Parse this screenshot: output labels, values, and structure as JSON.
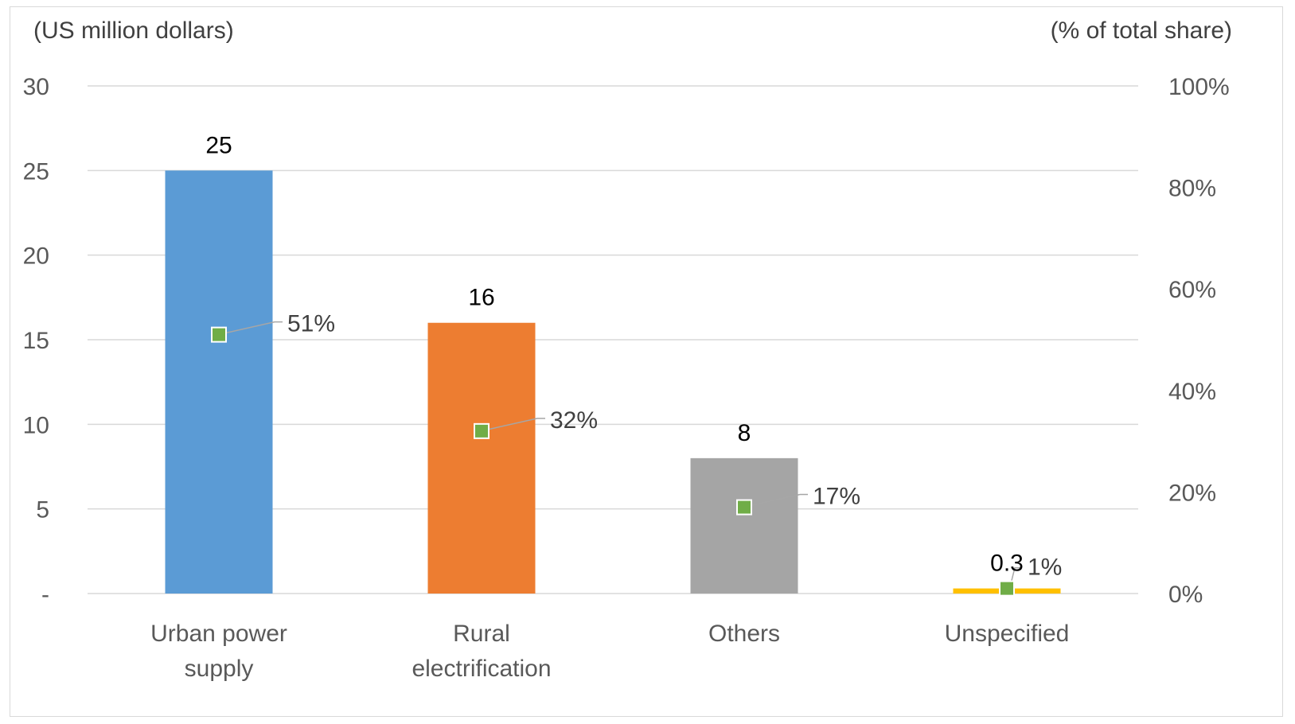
{
  "chart_data": {
    "type": "bar",
    "left_axis_title": "(US million dollars)",
    "right_axis_title": "(% of total share)",
    "categories": [
      [
        "Urban power",
        "supply"
      ],
      [
        "Rural",
        "electrification"
      ],
      [
        "Others"
      ],
      [
        "Unspecified"
      ]
    ],
    "series": [
      {
        "values": [
          25,
          16,
          8,
          0.3
        ],
        "value_labels": [
          "25",
          "16",
          "8",
          "0.3"
        ],
        "colors": [
          "#5b9bd5",
          "#ed7d31",
          "#a5a5a5",
          "#ffc000"
        ]
      },
      {
        "type": "marker",
        "axis": "right",
        "values": [
          51,
          32,
          17,
          1
        ],
        "value_labels": [
          "51%",
          "32%",
          "17%",
          "1%"
        ],
        "color": "#70ad47"
      }
    ],
    "left_axis": {
      "ylim": [
        0,
        30
      ],
      "ticks": [
        0,
        5,
        10,
        15,
        20,
        25,
        30
      ],
      "tick_labels": [
        "-",
        "5",
        "10",
        "15",
        "20",
        "25",
        "30"
      ]
    },
    "right_axis": {
      "ylim": [
        0,
        100
      ],
      "ticks": [
        0,
        20,
        40,
        60,
        80,
        100
      ],
      "tick_labels": [
        "0%",
        "20%",
        "40%",
        "60%",
        "80%",
        "100%"
      ]
    },
    "grid": true,
    "legend": "none",
    "gridline_color": "#d9d9d9"
  }
}
